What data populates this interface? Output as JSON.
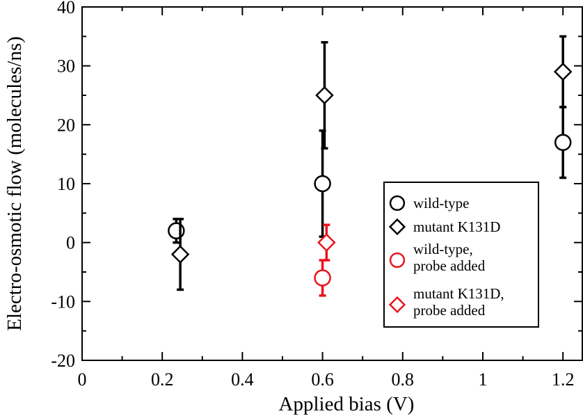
{
  "chart_data": {
    "type": "scatter",
    "title": "",
    "xlabel": "Applied bias (V)",
    "ylabel": "Electro-osmotic flow (molecules/ns)",
    "xlim": [
      0,
      1.25
    ],
    "ylim": [
      -20,
      40
    ],
    "x_ticks": [
      0,
      0.2,
      0.4,
      0.6,
      0.8,
      1,
      1.2
    ],
    "x_tick_labels": [
      "0",
      "0.2",
      "0.4",
      "0.6",
      "0.8",
      "1",
      "1.2"
    ],
    "y_ticks": [
      -20,
      -10,
      0,
      10,
      20,
      30,
      40
    ],
    "y_tick_labels": [
      "-20",
      "-10",
      "0",
      "10",
      "20",
      "30",
      "40"
    ],
    "grid": false,
    "legend_position": "right",
    "series": [
      {
        "name": "wild-type",
        "marker": "circle",
        "color": "#000000",
        "points": [
          {
            "x": 0.235,
            "y": 2,
            "err": 2
          },
          {
            "x": 0.6,
            "y": 10,
            "err": 9
          },
          {
            "x": 1.2,
            "y": 17,
            "err": 6
          }
        ]
      },
      {
        "name": "mutant K131D",
        "marker": "diamond",
        "color": "#000000",
        "points": [
          {
            "x": 0.245,
            "y": -2,
            "err": 6
          },
          {
            "x": 0.605,
            "y": 25,
            "err": 9
          },
          {
            "x": 1.2,
            "y": 29,
            "err": 6
          }
        ]
      },
      {
        "name": "wild-type,\nprobe added",
        "marker": "circle",
        "color": "#e8141b",
        "points": [
          {
            "x": 0.6,
            "y": -6,
            "err": 3
          }
        ]
      },
      {
        "name": "mutant K131D,\nprobe added",
        "marker": "diamond",
        "color": "#e8141b",
        "points": [
          {
            "x": 0.61,
            "y": 0,
            "err": 3
          }
        ]
      }
    ]
  }
}
